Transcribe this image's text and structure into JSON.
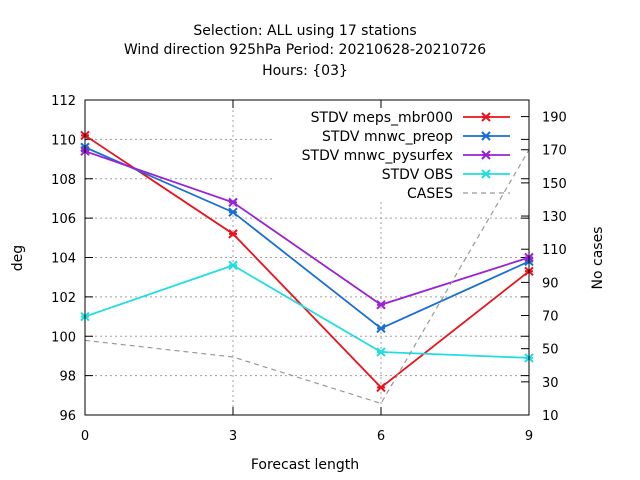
{
  "chart_data": {
    "type": "line",
    "title_lines": [
      "Selection: ALL using    17 stations",
      "Wind direction 925hPa   Period: 20210628-20210726",
      "Hours: {03}"
    ],
    "xlabel": "Forecast length",
    "ylabel": "deg",
    "y2label": "No cases",
    "x": [
      0,
      3,
      6,
      9
    ],
    "xlim": [
      0,
      9
    ],
    "ylim": [
      96,
      112
    ],
    "y2lim": [
      10,
      200
    ],
    "xticks": [
      "0",
      "3",
      "6",
      "9"
    ],
    "yticks": [
      "96",
      "98",
      "100",
      "102",
      "104",
      "106",
      "108",
      "110",
      "112"
    ],
    "y2ticks": [
      "10",
      "30",
      "50",
      "70",
      "90",
      "110",
      "130",
      "150",
      "170",
      "190"
    ],
    "grid": true,
    "legend_position": "top-right",
    "series": [
      {
        "name": "STDV meps_mbr000",
        "color": "#e8131c",
        "axis": "y",
        "marker": "x",
        "values": [
          110.2,
          105.2,
          97.4,
          103.3
        ]
      },
      {
        "name": "STDV mnwc_preop",
        "color": "#1a6fd2",
        "axis": "y",
        "marker": "x",
        "values": [
          109.6,
          106.3,
          100.4,
          103.8
        ]
      },
      {
        "name": "STDV mnwc_pysurfex",
        "color": "#9a22d4",
        "axis": "y",
        "marker": "x",
        "values": [
          109.4,
          106.8,
          101.6,
          104.0
        ]
      },
      {
        "name": "STDV OBS",
        "color": "#22dde0",
        "axis": "y",
        "marker": "x",
        "values": [
          101.0,
          103.6,
          99.2,
          98.9
        ]
      },
      {
        "name": "CASES",
        "color": "#999999",
        "axis": "y2",
        "marker": "none",
        "dashed": true,
        "values": [
          55,
          45,
          17,
          170
        ]
      }
    ]
  }
}
